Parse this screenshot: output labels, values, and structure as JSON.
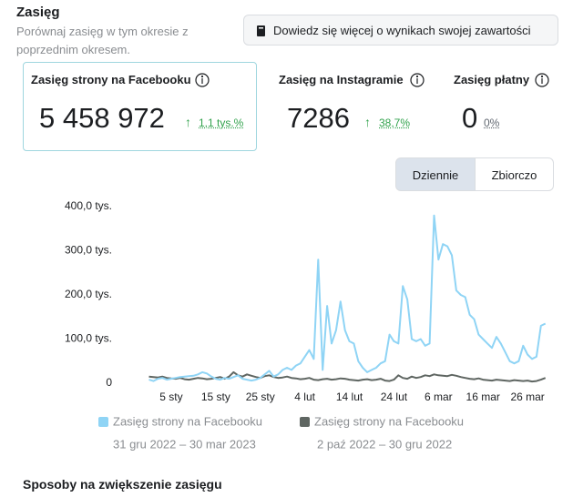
{
  "header": {
    "title": "Zasięg",
    "subtitle": "Porównaj zasięg w tym okresie z poprzednim okresem."
  },
  "learn_more_button": "Dowiedz się więcej o wynikach swojej zawartości",
  "metrics": [
    {
      "label": "Zasięg strony na Facebooku",
      "value": "5 458 972",
      "change": "1,1 tys.%"
    },
    {
      "label": "Zasięg na Instagramie",
      "value": "7286",
      "change": "38,7%"
    },
    {
      "label": "Zasięg płatny",
      "value": "0",
      "change": "0%"
    }
  ],
  "toggle": [
    "Dziennie",
    "Zbiorczo"
  ],
  "chart_data": {
    "type": "line",
    "categories": [
      null,
      null,
      null,
      null,
      null,
      "5 sty",
      null,
      null,
      null,
      null,
      null,
      null,
      null,
      null,
      null,
      "15 sty",
      null,
      null,
      null,
      null,
      null,
      null,
      null,
      null,
      null,
      "25 sty",
      null,
      null,
      null,
      null,
      null,
      null,
      null,
      null,
      null,
      "4 lut",
      null,
      null,
      null,
      null,
      null,
      null,
      null,
      null,
      null,
      "14 lut",
      null,
      null,
      null,
      null,
      null,
      null,
      null,
      null,
      null,
      "24 lut",
      null,
      null,
      null,
      null,
      null,
      null,
      null,
      null,
      null,
      "6 mar",
      null,
      null,
      null,
      null,
      null,
      null,
      null,
      null,
      null,
      "16 mar",
      null,
      null,
      null,
      null,
      null,
      null,
      null,
      null,
      null,
      "26 mar",
      null,
      null,
      null,
      null
    ],
    "series": [
      {
        "name": "Zasięg strony na Facebooku",
        "period": "31 gru 2022 – 30 mar 2023",
        "color": "#8fd4f5",
        "values": [
          8000,
          5000,
          10000,
          12000,
          8000,
          10000,
          12000,
          14000,
          15000,
          16000,
          17000,
          20000,
          25000,
          22000,
          15000,
          10000,
          8000,
          12000,
          10000,
          14000,
          18000,
          10000,
          8000,
          6000,
          8000,
          12000,
          20000,
          28000,
          15000,
          20000,
          30000,
          35000,
          30000,
          40000,
          45000,
          60000,
          75000,
          55000,
          280000,
          30000,
          175000,
          90000,
          120000,
          185000,
          120000,
          95000,
          90000,
          50000,
          35000,
          25000,
          30000,
          35000,
          45000,
          50000,
          110000,
          95000,
          90000,
          220000,
          190000,
          100000,
          95000,
          100000,
          85000,
          90000,
          380000,
          280000,
          315000,
          310000,
          290000,
          210000,
          200000,
          195000,
          155000,
          145000,
          110000,
          100000,
          90000,
          80000,
          105000,
          90000,
          70000,
          50000,
          45000,
          50000,
          85000,
          65000,
          55000,
          60000,
          130000,
          135000
        ]
      },
      {
        "name": "Zasięg strony na Facebooku",
        "period": "2 paź 2022 – 30 gru 2022",
        "color": "#5f6662",
        "values": [
          15000,
          14000,
          13000,
          15000,
          12000,
          11000,
          10000,
          12000,
          9000,
          8000,
          10000,
          12000,
          11000,
          9000,
          10000,
          12000,
          14000,
          10000,
          15000,
          25000,
          18000,
          15000,
          20000,
          17000,
          14000,
          12000,
          16000,
          18000,
          14000,
          12000,
          13000,
          15000,
          12000,
          11000,
          9000,
          10000,
          12000,
          8000,
          7000,
          9000,
          10000,
          8000,
          9000,
          11000,
          10000,
          8000,
          7000,
          6000,
          8000,
          9000,
          7000,
          8000,
          10000,
          6000,
          5000,
          8000,
          18000,
          12000,
          10000,
          15000,
          12000,
          14000,
          18000,
          16000,
          20000,
          18000,
          17000,
          16000,
          19000,
          17000,
          14000,
          12000,
          10000,
          9000,
          11000,
          8000,
          7000,
          6000,
          8000,
          7000,
          6000,
          5000,
          7000,
          6000,
          5000,
          6000,
          4000,
          5000,
          8000,
          12000
        ]
      }
    ],
    "ylim": [
      0,
      400000
    ],
    "yticks": [
      0,
      {
        "value": 100000,
        "label": "100,0 tys."
      },
      {
        "value": 200000,
        "label": "200,0 tys."
      },
      {
        "value": 300000,
        "label": "300,0 tys."
      },
      {
        "value": 400000,
        "label": "400,0 tys."
      }
    ],
    "grid": false
  },
  "footer_heading": "Sposoby na zwiększenie zasięgu"
}
